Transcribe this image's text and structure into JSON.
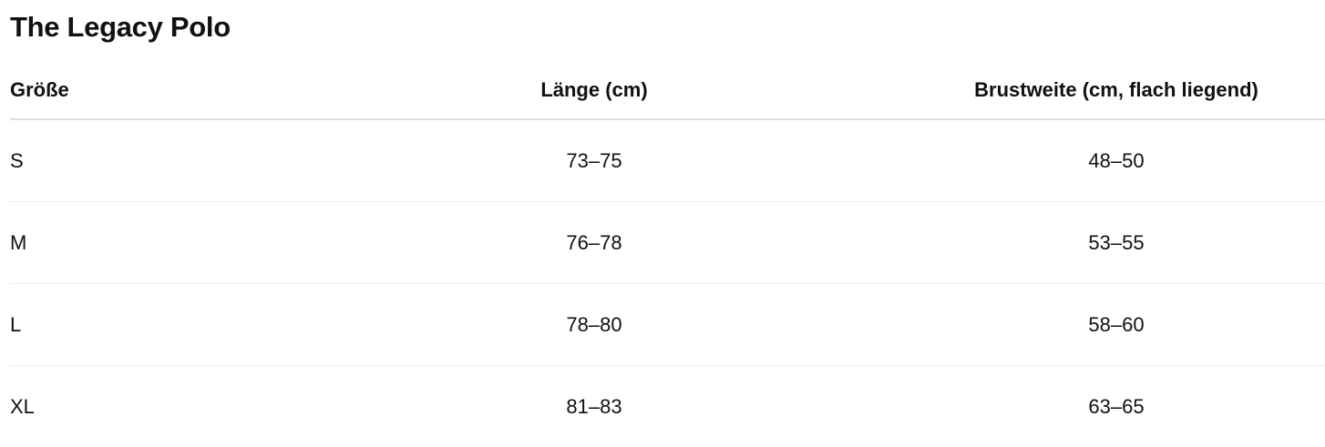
{
  "title": "The Legacy Polo",
  "table": {
    "headers": [
      "Größe",
      "Länge (cm)",
      "Brustweite (cm, flach liegend)"
    ],
    "rows": [
      [
        "S",
        "73–75",
        "48–50"
      ],
      [
        "M",
        "76–78",
        "53–55"
      ],
      [
        "L",
        "78–80",
        "58–60"
      ],
      [
        "XL",
        "81–83",
        "63–65"
      ]
    ]
  }
}
